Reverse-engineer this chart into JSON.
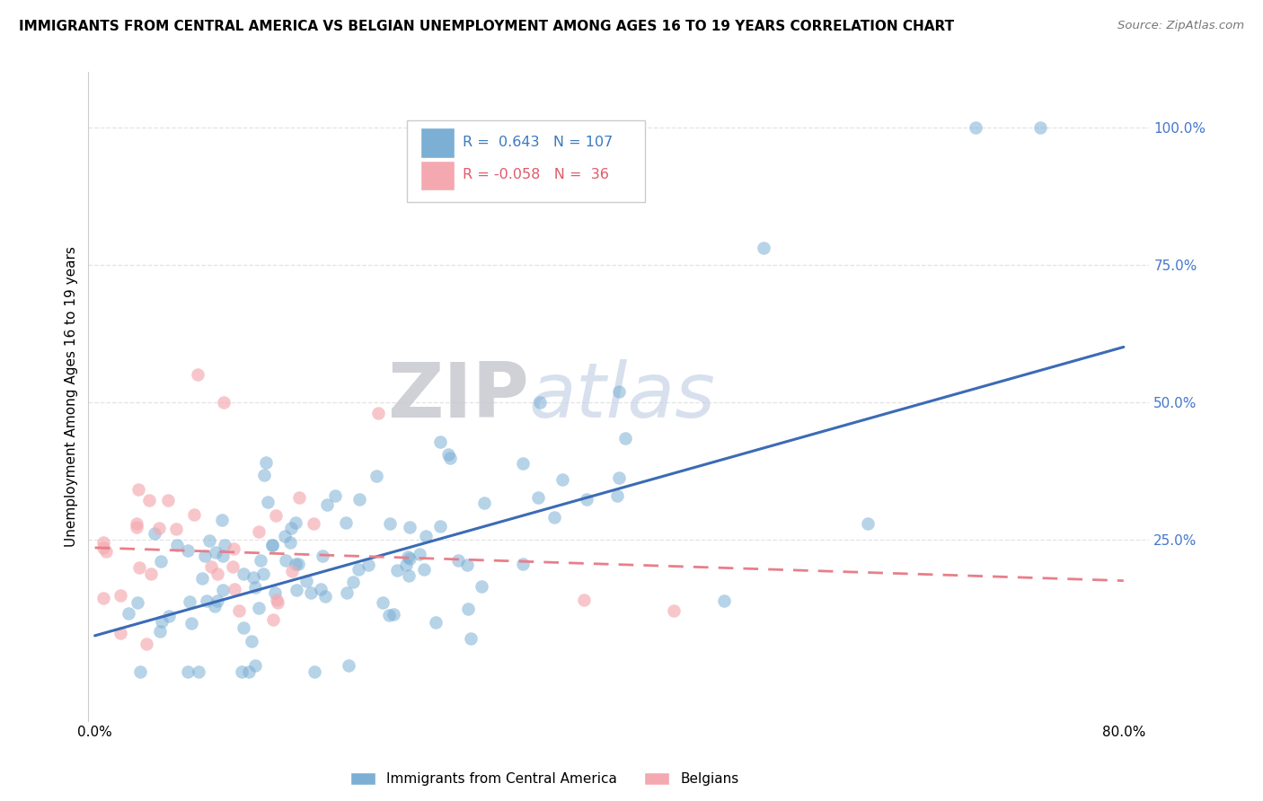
{
  "title": "IMMIGRANTS FROM CENTRAL AMERICA VS BELGIAN UNEMPLOYMENT AMONG AGES 16 TO 19 YEARS CORRELATION CHART",
  "source": "Source: ZipAtlas.com",
  "ylabel": "Unemployment Among Ages 16 to 19 years",
  "xlim": [
    -0.005,
    0.82
  ],
  "ylim": [
    -0.08,
    1.1
  ],
  "xtick_positions": [
    0.0,
    0.1,
    0.2,
    0.3,
    0.4,
    0.5,
    0.6,
    0.7,
    0.8
  ],
  "xticklabels": [
    "0.0%",
    "",
    "",
    "",
    "",
    "",
    "",
    "",
    "80.0%"
  ],
  "ytick_positions": [
    0.0,
    0.25,
    0.5,
    0.75,
    1.0
  ],
  "yticklabels": [
    "",
    "25.0%",
    "50.0%",
    "75.0%",
    "100.0%"
  ],
  "blue_R": 0.643,
  "blue_N": 107,
  "pink_R": -0.058,
  "pink_N": 36,
  "blue_color": "#7BAFD4",
  "pink_color": "#F4A8B0",
  "blue_line_color": "#3B6BB5",
  "pink_line_color": "#E87E8A",
  "ytick_color": "#4477CC",
  "watermark_zip": "ZIP",
  "watermark_atlas": "atlas",
  "legend_label_blue": "Immigrants from Central America",
  "legend_label_pink": "Belgians",
  "background_color": "#FFFFFF",
  "grid_color": "#DDDDDD",
  "blue_trend_x0": 0.0,
  "blue_trend_y0": 0.075,
  "blue_trend_x1": 0.8,
  "blue_trend_y1": 0.6,
  "pink_trend_x0": 0.0,
  "pink_trend_y0": 0.235,
  "pink_trend_x1": 0.8,
  "pink_trend_y1": 0.175
}
